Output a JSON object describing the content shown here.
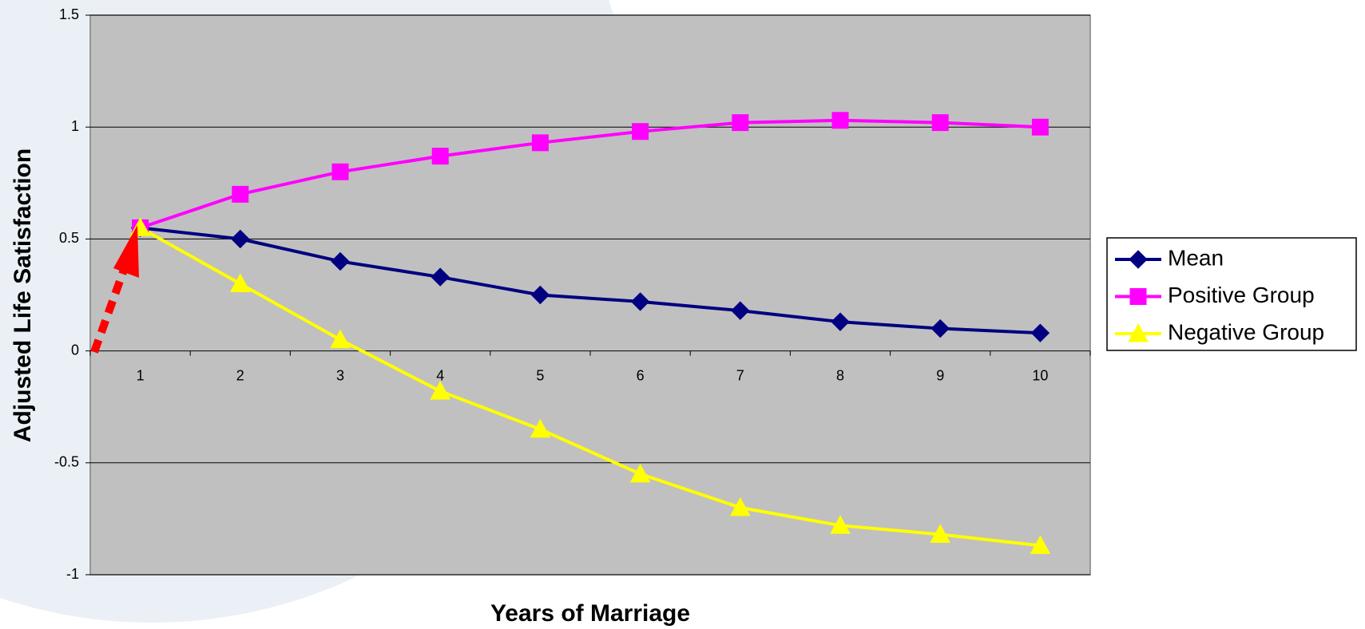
{
  "chart_data": {
    "type": "line",
    "x_label": "Years of Marriage",
    "y_label": "Adjusted Life Satisfaction",
    "categories": [
      "1",
      "2",
      "3",
      "4",
      "5",
      "6",
      "7",
      "8",
      "9",
      "10"
    ],
    "ylim": [
      -1,
      1.5
    ],
    "yticks": [
      -1,
      -0.5,
      0,
      0.5,
      1,
      1.5
    ],
    "grid": true,
    "series": [
      {
        "name": "Mean",
        "color": "#000080",
        "marker": "diamond",
        "values": [
          0.55,
          0.5,
          0.4,
          0.33,
          0.25,
          0.22,
          0.18,
          0.13,
          0.1,
          0.08
        ]
      },
      {
        "name": "Positive Group",
        "color": "#ff00ff",
        "marker": "square",
        "values": [
          0.55,
          0.7,
          0.8,
          0.87,
          0.93,
          0.98,
          1.02,
          1.03,
          1.02,
          1.0
        ]
      },
      {
        "name": "Negative Group",
        "color": "#ffff00",
        "marker": "triangle",
        "values": [
          0.55,
          0.3,
          0.05,
          -0.18,
          -0.35,
          -0.55,
          -0.7,
          -0.78,
          -0.82,
          -0.87
        ]
      }
    ]
  }
}
